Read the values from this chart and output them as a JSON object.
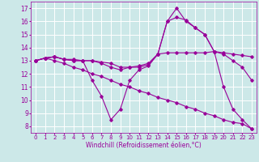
{
  "xlabel": "Windchill (Refroidissement éolien,°C)",
  "bg_color": "#cce8e8",
  "grid_color": "#ffffff",
  "line_color": "#990099",
  "xlim": [
    -0.5,
    23.5
  ],
  "ylim": [
    7.5,
    17.5
  ],
  "xticks": [
    0,
    1,
    2,
    3,
    4,
    5,
    6,
    7,
    8,
    9,
    10,
    11,
    12,
    13,
    14,
    15,
    16,
    17,
    18,
    19,
    20,
    21,
    22,
    23
  ],
  "yticks": [
    8,
    9,
    10,
    11,
    12,
    13,
    14,
    15,
    16,
    17
  ],
  "series": [
    {
      "x": [
        0,
        1,
        2,
        3,
        4,
        5,
        6,
        7,
        8,
        9,
        10,
        11,
        12,
        13,
        14,
        15,
        16,
        17,
        18,
        19,
        20,
        21,
        22,
        23
      ],
      "y": [
        13.0,
        13.2,
        13.3,
        13.1,
        13.0,
        13.0,
        13.0,
        12.9,
        12.8,
        12.5,
        12.5,
        12.5,
        12.7,
        13.5,
        13.6,
        13.6,
        13.6,
        13.6,
        13.6,
        13.7,
        13.6,
        13.5,
        13.4,
        13.3
      ]
    },
    {
      "x": [
        0,
        1,
        2,
        3,
        4,
        5,
        6,
        7,
        8,
        9,
        10,
        11,
        12,
        13,
        14,
        15,
        16,
        17,
        18,
        19,
        20,
        21,
        22,
        23
      ],
      "y": [
        13.0,
        13.2,
        13.3,
        13.1,
        13.0,
        13.0,
        13.0,
        12.8,
        12.5,
        12.3,
        12.5,
        12.6,
        12.8,
        13.5,
        16.0,
        16.3,
        16.1,
        15.5,
        15.0,
        13.7,
        13.5,
        13.0,
        12.5,
        11.5
      ]
    },
    {
      "x": [
        0,
        1,
        2,
        3,
        4,
        5,
        6,
        7,
        8,
        9,
        10,
        11,
        12,
        13,
        14,
        15,
        16,
        17,
        18,
        19,
        20,
        21,
        22,
        23
      ],
      "y": [
        13.0,
        13.2,
        13.3,
        13.1,
        13.1,
        13.0,
        11.5,
        10.3,
        8.5,
        9.3,
        11.5,
        12.3,
        12.6,
        13.5,
        16.0,
        17.0,
        16.0,
        15.5,
        15.0,
        13.7,
        11.0,
        9.3,
        8.5,
        7.8
      ]
    },
    {
      "x": [
        0,
        1,
        2,
        3,
        4,
        5,
        6,
        7,
        8,
        9,
        10,
        11,
        12,
        13,
        14,
        15,
        16,
        17,
        18,
        19,
        20,
        21,
        22,
        23
      ],
      "y": [
        13.0,
        13.2,
        13.0,
        12.8,
        12.5,
        12.3,
        12.0,
        11.8,
        11.5,
        11.2,
        11.0,
        10.7,
        10.5,
        10.2,
        10.0,
        9.8,
        9.5,
        9.3,
        9.0,
        8.8,
        8.5,
        8.3,
        8.2,
        7.8
      ]
    }
  ]
}
